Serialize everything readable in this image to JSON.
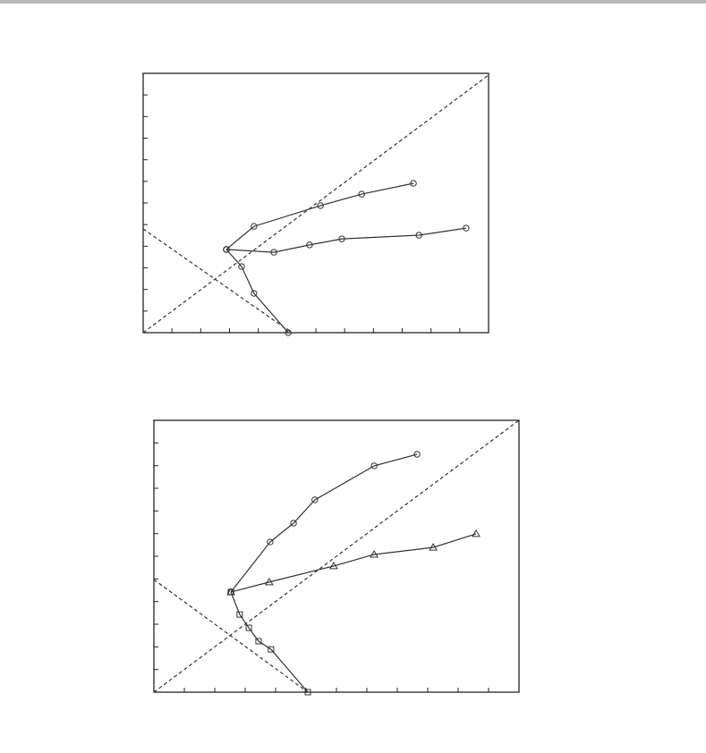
{
  "chart_data": [
    {
      "type": "line",
      "tick_labels": false,
      "line_color": "#333333",
      "xlim": [
        0,
        12
      ],
      "ylim": [
        0,
        12
      ],
      "xticks": [
        1,
        2,
        3,
        4,
        5,
        6,
        7,
        8,
        9,
        10,
        11
      ],
      "yticks": [
        1,
        2,
        3,
        4,
        5,
        6,
        7,
        8,
        9,
        10,
        11
      ],
      "series": [
        {
          "style": "solid",
          "marker": "circle",
          "x": [
            2.89,
            3.85,
            6.16,
            7.59,
            9.39
          ],
          "values": [
            3.85,
            4.92,
            5.88,
            6.41,
            6.91
          ]
        },
        {
          "style": "solid",
          "marker": "circle",
          "x": [
            2.89,
            4.54,
            5.78,
            6.9,
            9.58,
            11.22
          ],
          "values": [
            3.85,
            3.72,
            4.06,
            4.34,
            4.51,
            4.84
          ]
        },
        {
          "style": "solid",
          "marker": "circle",
          "x": [
            2.89,
            3.42,
            3.85,
            5.04
          ],
          "values": [
            3.85,
            3.06,
            1.82,
            0
          ]
        },
        {
          "style": "dashed",
          "x": [
            0,
            12
          ],
          "values": [
            0,
            11.92
          ]
        },
        {
          "style": "dashed",
          "x": [
            0,
            5.16
          ],
          "values": [
            4.8,
            0
          ]
        }
      ]
    },
    {
      "type": "line",
      "tick_labels": false,
      "line_color": "#333333",
      "xlim": [
        0,
        12
      ],
      "ylim": [
        0,
        12
      ],
      "xticks": [
        1,
        2,
        3,
        4,
        5,
        6,
        7,
        8,
        9,
        10,
        11
      ],
      "yticks": [
        1,
        2,
        3,
        4,
        5,
        6,
        7,
        8,
        9,
        10,
        11
      ],
      "series": [
        {
          "style": "solid",
          "marker": "circle",
          "x": [
            2.53,
            3.82,
            4.59,
            5.29,
            7.24,
            8.65
          ],
          "values": [
            4.42,
            6.63,
            7.46,
            8.49,
            9.99,
            10.5
          ]
        },
        {
          "style": "solid",
          "marker": "triangle",
          "x": [
            2.53,
            3.79,
            5.91,
            7.24,
            9.18,
            10.59
          ],
          "values": [
            4.42,
            4.86,
            5.57,
            6.08,
            6.39,
            6.99
          ]
        },
        {
          "style": "solid",
          "marker": "square",
          "x": [
            2.53,
            2.82,
            3.12,
            3.44,
            3.85,
            5.06
          ],
          "values": [
            4.42,
            3.43,
            2.84,
            2.25,
            1.89,
            0
          ]
        },
        {
          "style": "dashed",
          "x": [
            0,
            12
          ],
          "values": [
            0,
            12
          ]
        },
        {
          "style": "dashed",
          "x": [
            0,
            5.06
          ],
          "values": [
            4.97,
            0
          ]
        }
      ]
    }
  ]
}
